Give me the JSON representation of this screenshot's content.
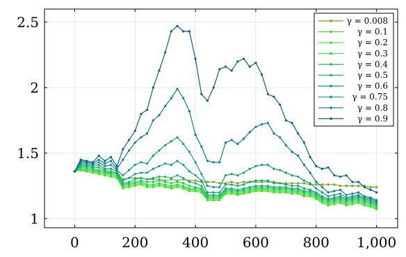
{
  "chart_data": {
    "type": "line",
    "title": "",
    "xlabel": "",
    "ylabel": "",
    "xlim": [
      -100,
      1070
    ],
    "ylim": [
      0.93,
      2.6
    ],
    "grid": true,
    "legend_position": "top-right",
    "x_ticks": [
      0,
      200,
      400,
      600,
      800,
      1000
    ],
    "x_tick_labels": [
      "0",
      "200",
      "400",
      "600",
      "800",
      "1,000"
    ],
    "y_ticks": [
      1,
      1.5,
      2,
      2.5
    ],
    "y_tick_labels": [
      "1",
      "1.5",
      "2",
      "2.5"
    ],
    "x": [
      0,
      20,
      40,
      60,
      80,
      100,
      120,
      140,
      160,
      180,
      200,
      220,
      240,
      260,
      280,
      300,
      320,
      340,
      360,
      380,
      400,
      420,
      440,
      460,
      480,
      500,
      520,
      540,
      560,
      580,
      600,
      620,
      640,
      660,
      680,
      700,
      720,
      740,
      760,
      780,
      800,
      820,
      840,
      860,
      880,
      900,
      920,
      940,
      960,
      980,
      1000
    ],
    "series": [
      {
        "name": "γ = 0.008",
        "color": "#6aa81e",
        "values": [
          1.36,
          1.37,
          1.37,
          1.36,
          1.36,
          1.35,
          1.35,
          1.34,
          1.3,
          1.31,
          1.31,
          1.31,
          1.3,
          1.3,
          1.3,
          1.29,
          1.3,
          1.29,
          1.3,
          1.29,
          1.29,
          1.28,
          1.28,
          1.28,
          1.27,
          1.27,
          1.28,
          1.27,
          1.28,
          1.28,
          1.28,
          1.28,
          1.28,
          1.28,
          1.27,
          1.27,
          1.27,
          1.27,
          1.27,
          1.26,
          1.26,
          1.26,
          1.26,
          1.26,
          1.25,
          1.25,
          1.25,
          1.25,
          1.25,
          1.24,
          1.24
        ]
      },
      {
        "name": "γ = 0.1",
        "color": "#55d61c",
        "values": [
          1.36,
          1.37,
          1.36,
          1.35,
          1.34,
          1.33,
          1.32,
          1.31,
          1.23,
          1.24,
          1.25,
          1.26,
          1.24,
          1.24,
          1.25,
          1.24,
          1.23,
          1.24,
          1.23,
          1.21,
          1.21,
          1.2,
          1.14,
          1.14,
          1.14,
          1.19,
          1.19,
          1.18,
          1.19,
          1.2,
          1.21,
          1.21,
          1.21,
          1.2,
          1.2,
          1.2,
          1.19,
          1.19,
          1.17,
          1.17,
          1.15,
          1.12,
          1.1,
          1.11,
          1.12,
          1.1,
          1.11,
          1.12,
          1.1,
          1.09,
          1.07
        ]
      },
      {
        "name": "γ = 0.2",
        "color": "#3ee43a",
        "values": [
          1.36,
          1.38,
          1.37,
          1.36,
          1.35,
          1.34,
          1.33,
          1.32,
          1.24,
          1.25,
          1.26,
          1.27,
          1.25,
          1.25,
          1.26,
          1.25,
          1.24,
          1.25,
          1.24,
          1.22,
          1.22,
          1.21,
          1.15,
          1.15,
          1.15,
          1.2,
          1.2,
          1.19,
          1.2,
          1.21,
          1.22,
          1.22,
          1.22,
          1.21,
          1.21,
          1.21,
          1.2,
          1.2,
          1.18,
          1.18,
          1.16,
          1.13,
          1.11,
          1.12,
          1.13,
          1.11,
          1.12,
          1.13,
          1.11,
          1.1,
          1.08
        ]
      },
      {
        "name": "γ = 0.3",
        "color": "#2ad44e",
        "values": [
          1.36,
          1.39,
          1.38,
          1.37,
          1.36,
          1.35,
          1.34,
          1.33,
          1.25,
          1.26,
          1.27,
          1.28,
          1.26,
          1.26,
          1.27,
          1.26,
          1.25,
          1.26,
          1.25,
          1.23,
          1.23,
          1.22,
          1.16,
          1.16,
          1.16,
          1.21,
          1.21,
          1.2,
          1.21,
          1.22,
          1.23,
          1.23,
          1.23,
          1.22,
          1.22,
          1.22,
          1.21,
          1.21,
          1.19,
          1.19,
          1.17,
          1.14,
          1.12,
          1.13,
          1.14,
          1.12,
          1.13,
          1.14,
          1.12,
          1.11,
          1.09
        ]
      },
      {
        "name": "γ = 0.4",
        "color": "#22c25c",
        "values": [
          1.36,
          1.4,
          1.39,
          1.38,
          1.37,
          1.36,
          1.35,
          1.34,
          1.26,
          1.27,
          1.28,
          1.29,
          1.28,
          1.28,
          1.29,
          1.28,
          1.27,
          1.28,
          1.27,
          1.25,
          1.24,
          1.23,
          1.17,
          1.17,
          1.17,
          1.22,
          1.22,
          1.21,
          1.22,
          1.23,
          1.24,
          1.24,
          1.24,
          1.23,
          1.23,
          1.23,
          1.22,
          1.22,
          1.2,
          1.2,
          1.18,
          1.15,
          1.13,
          1.14,
          1.15,
          1.13,
          1.14,
          1.15,
          1.13,
          1.12,
          1.1
        ]
      },
      {
        "name": "γ = 0.5",
        "color": "#1bb06a",
        "values": [
          1.36,
          1.41,
          1.4,
          1.39,
          1.39,
          1.37,
          1.36,
          1.35,
          1.27,
          1.28,
          1.3,
          1.31,
          1.3,
          1.31,
          1.32,
          1.32,
          1.31,
          1.33,
          1.31,
          1.28,
          1.27,
          1.25,
          1.18,
          1.18,
          1.18,
          1.23,
          1.23,
          1.22,
          1.23,
          1.24,
          1.25,
          1.25,
          1.25,
          1.24,
          1.24,
          1.24,
          1.23,
          1.23,
          1.21,
          1.21,
          1.19,
          1.16,
          1.14,
          1.15,
          1.16,
          1.14,
          1.15,
          1.16,
          1.14,
          1.13,
          1.11
        ]
      },
      {
        "name": "γ = 0.6",
        "color": "#169e78",
        "values": [
          1.36,
          1.42,
          1.41,
          1.4,
          1.41,
          1.38,
          1.38,
          1.36,
          1.29,
          1.31,
          1.34,
          1.35,
          1.35,
          1.38,
          1.4,
          1.42,
          1.41,
          1.44,
          1.41,
          1.36,
          1.33,
          1.29,
          1.2,
          1.2,
          1.2,
          1.26,
          1.26,
          1.25,
          1.26,
          1.28,
          1.29,
          1.29,
          1.29,
          1.27,
          1.27,
          1.26,
          1.25,
          1.25,
          1.23,
          1.22,
          1.2,
          1.17,
          1.15,
          1.16,
          1.17,
          1.15,
          1.16,
          1.17,
          1.15,
          1.14,
          1.12
        ]
      },
      {
        "name": "γ = 0.75",
        "color": "#119886",
        "values": [
          1.36,
          1.43,
          1.42,
          1.41,
          1.43,
          1.4,
          1.41,
          1.37,
          1.33,
          1.37,
          1.41,
          1.43,
          1.42,
          1.48,
          1.52,
          1.56,
          1.59,
          1.62,
          1.57,
          1.51,
          1.43,
          1.34,
          1.25,
          1.24,
          1.24,
          1.33,
          1.34,
          1.33,
          1.35,
          1.38,
          1.4,
          1.41,
          1.41,
          1.38,
          1.37,
          1.35,
          1.33,
          1.32,
          1.29,
          1.27,
          1.23,
          1.2,
          1.17,
          1.18,
          1.19,
          1.16,
          1.17,
          1.18,
          1.16,
          1.15,
          1.13
        ]
      },
      {
        "name": "γ = 0.8",
        "color": "#0d7a94",
        "values": [
          1.36,
          1.44,
          1.43,
          1.42,
          1.45,
          1.42,
          1.44,
          1.38,
          1.45,
          1.52,
          1.58,
          1.62,
          1.65,
          1.75,
          1.79,
          1.86,
          1.92,
          1.99,
          1.92,
          1.82,
          1.64,
          1.55,
          1.44,
          1.43,
          1.43,
          1.58,
          1.6,
          1.57,
          1.61,
          1.66,
          1.7,
          1.72,
          1.73,
          1.65,
          1.62,
          1.56,
          1.51,
          1.48,
          1.41,
          1.35,
          1.28,
          1.24,
          1.2,
          1.21,
          1.22,
          1.18,
          1.19,
          1.2,
          1.17,
          1.16,
          1.14
        ]
      },
      {
        "name": "γ = 0.9",
        "color": "#0a5e88",
        "values": [
          1.36,
          1.45,
          1.44,
          1.43,
          1.48,
          1.44,
          1.47,
          1.4,
          1.53,
          1.6,
          1.67,
          1.8,
          1.83,
          2.0,
          2.13,
          2.27,
          2.43,
          2.47,
          2.43,
          2.43,
          2.22,
          1.95,
          1.9,
          2.0,
          2.14,
          2.16,
          2.13,
          2.2,
          2.22,
          2.16,
          2.19,
          2.1,
          1.95,
          1.93,
          1.87,
          1.75,
          1.73,
          1.65,
          1.58,
          1.47,
          1.4,
          1.38,
          1.39,
          1.33,
          1.32,
          1.33,
          1.28,
          1.28,
          1.24,
          1.22,
          1.2
        ]
      }
    ]
  }
}
